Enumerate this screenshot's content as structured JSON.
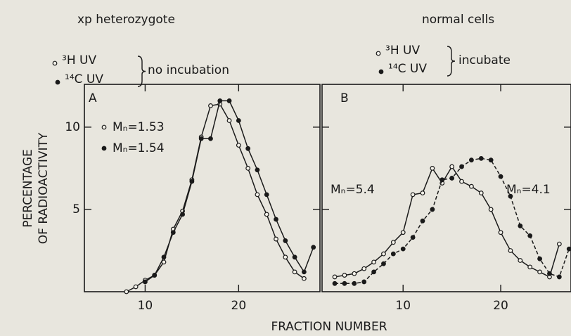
{
  "xlabel": "FRACTION NUMBER",
  "ylabel": [
    "PERCENTAGE",
    "OF RADIOACTIVITY"
  ],
  "chart_data": [
    {
      "type": "line",
      "title": "xp heterozygote",
      "panel_label": "A",
      "legend_note": "no incubation",
      "x": [
        8,
        9,
        10,
        11,
        12,
        13,
        14,
        15,
        16,
        17,
        18,
        19,
        20,
        21,
        22,
        23,
        24,
        25,
        26,
        27,
        28
      ],
      "series": [
        {
          "name": "³H UV",
          "color": "#1a1a1a",
          "marker": "open",
          "linestyle": "solid",
          "values": [
            0,
            0.3,
            0.7,
            1.0,
            1.8,
            3.8,
            4.9,
            6.8,
            9.4,
            11.3,
            11.4,
            10.4,
            8.9,
            7.5,
            5.9,
            4.7,
            3.2,
            2.1,
            1.2,
            0.8,
            null
          ]
        },
        {
          "name": "¹⁴C UV",
          "color": "#1a1a1a",
          "marker": "filled",
          "linestyle": "solid",
          "values": [
            null,
            null,
            0.6,
            1.0,
            2.1,
            3.6,
            4.7,
            6.7,
            9.3,
            9.3,
            11.6,
            11.6,
            10.4,
            8.7,
            7.4,
            5.9,
            4.4,
            3.1,
            2.1,
            1.2,
            2.7
          ]
        }
      ],
      "annotations": [
        {
          "text": "Mₙ=1.53",
          "marker": "open"
        },
        {
          "text": "Mₙ=1.54",
          "marker": "filled"
        }
      ],
      "xlim": [
        3.5,
        28.7
      ],
      "ylim": [
        0,
        12.6
      ],
      "xticks": [
        10,
        20
      ],
      "yticks": [
        5,
        10
      ]
    },
    {
      "type": "line",
      "title": "normal cells",
      "panel_label": "B",
      "legend_note": "incubate",
      "x": [
        3,
        4,
        5,
        6,
        7,
        8,
        9,
        10,
        11,
        12,
        13,
        14,
        15,
        16,
        17,
        18,
        19,
        20,
        21,
        22,
        23,
        24,
        25,
        26,
        27
      ],
      "series": [
        {
          "name": "³H UV",
          "color": "#1a1a1a",
          "marker": "open",
          "linestyle": "solid",
          "values": [
            0.9,
            1.0,
            1.1,
            1.4,
            1.8,
            2.3,
            3.0,
            3.6,
            5.9,
            6.0,
            7.5,
            6.6,
            7.6,
            6.7,
            6.4,
            6.0,
            5.0,
            3.6,
            2.5,
            1.9,
            1.5,
            1.2,
            0.9,
            2.9,
            null
          ]
        },
        {
          "name": "¹⁴C UV",
          "color": "#1a1a1a",
          "marker": "filled",
          "linestyle": "dashed",
          "values": [
            0.5,
            0.5,
            0.5,
            0.6,
            1.2,
            1.7,
            2.3,
            2.6,
            3.3,
            4.3,
            5.0,
            6.8,
            6.9,
            7.6,
            8.0,
            8.1,
            8.0,
            7.0,
            5.8,
            4.0,
            3.4,
            2.0,
            1.1,
            0.9,
            2.6
          ]
        }
      ],
      "annotations": [
        {
          "text": "Mₙ=5.4"
        },
        {
          "text": "Mₙ=4.1"
        }
      ],
      "xlim": [
        1.7,
        27.2
      ],
      "ylim": [
        0,
        12.6
      ],
      "xticks": [
        10,
        20
      ],
      "yticks": [
        5,
        10
      ]
    }
  ]
}
